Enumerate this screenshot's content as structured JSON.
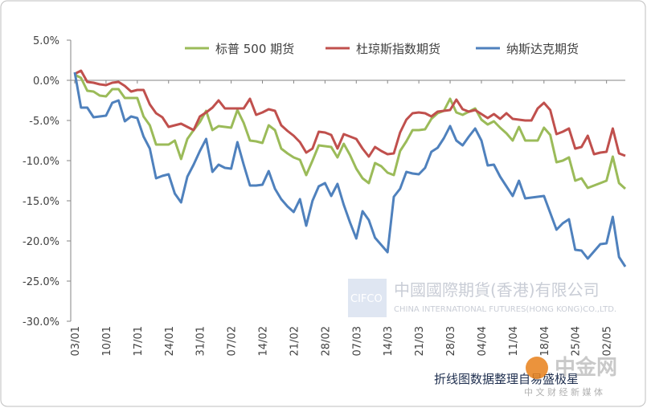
{
  "chart_data": {
    "type": "line",
    "categories": [
      "03/01",
      null,
      null,
      null,
      null,
      "10/01",
      null,
      null,
      null,
      null,
      "17/01",
      null,
      null,
      null,
      null,
      "24/01",
      null,
      null,
      null,
      null,
      "31/01",
      null,
      null,
      null,
      null,
      "07/02",
      null,
      null,
      null,
      null,
      "14/02",
      null,
      null,
      null,
      null,
      "21/02",
      null,
      null,
      null,
      null,
      "28/02",
      null,
      null,
      null,
      null,
      "07/03",
      null,
      null,
      null,
      null,
      "14/03",
      null,
      null,
      null,
      null,
      "21/03",
      null,
      null,
      null,
      null,
      "28/03",
      null,
      null,
      null,
      null,
      "04/04",
      null,
      null,
      null,
      null,
      "11/04",
      null,
      null,
      null,
      null,
      "18/04",
      null,
      null,
      null,
      null,
      "25/04",
      null,
      null,
      null,
      null,
      "02/05",
      null,
      null,
      null
    ],
    "series": [
      {
        "name": "标普 500 期货",
        "color": "#9bbb59",
        "values": [
          0.7,
          0.3,
          -1.3,
          -1.4,
          -1.9,
          -2,
          -1.1,
          -1.1,
          -2.2,
          -2.2,
          -2.2,
          -4.5,
          -5.6,
          -8,
          -8,
          -8,
          -7.5,
          -9.8,
          -7.3,
          -6.2,
          -5.2,
          -3.8,
          -6.2,
          -5.7,
          -5.8,
          -5.9,
          -3.7,
          -5.3,
          -7.5,
          -7.6,
          -7.8,
          -5.6,
          -6.2,
          -8.5,
          -9.1,
          -9.6,
          -9.9,
          -11.8,
          -10,
          -8.1,
          -8.2,
          -8.3,
          -9.6,
          -7.9,
          -9.3,
          -11,
          -12.2,
          -12.8,
          -10.3,
          -10.7,
          -11.5,
          -11.8,
          -8.8,
          -7.6,
          -6.2,
          -6.2,
          -6.1,
          -4.8,
          -4.1,
          -3.8,
          -2.3,
          -4,
          -4.3,
          -3.9,
          -3.5,
          -4.9,
          -5.5,
          -5.1,
          -5.9,
          -6.6,
          -7.5,
          -5.8,
          -7.5,
          -7.5,
          -7.5,
          -5.9,
          -6.8,
          -10.2,
          -10,
          -9.6,
          -12.5,
          -12.2,
          -13.4,
          -13.1,
          -12.8,
          -12.5,
          -9.5,
          -12.8,
          -13.5
        ]
      },
      {
        "name": "杜琼斯指数期货",
        "color": "#c0504d",
        "values": [
          0.8,
          1.2,
          -0.2,
          -0.3,
          -0.5,
          -0.6,
          -0.3,
          -0.2,
          -0.7,
          -1.4,
          -1.2,
          -1.2,
          -3,
          -4.1,
          -4.6,
          -5.8,
          -5.6,
          -5.4,
          -5.8,
          -6.2,
          -4.5,
          -4,
          -3.4,
          -2.5,
          -3.5,
          -3.5,
          -3.5,
          -3.5,
          -2.3,
          -4.3,
          -4,
          -3.6,
          -3.8,
          -5.6,
          -6.3,
          -6.9,
          -7.7,
          -9,
          -8.5,
          -6.4,
          -6.5,
          -6.8,
          -8.5,
          -6.7,
          -7,
          -7.3,
          -8.5,
          -9.5,
          -8.3,
          -8.8,
          -9.2,
          -9.1,
          -6.5,
          -4.9,
          -4.1,
          -4,
          -4.1,
          -4.5,
          -3.9,
          -3.8,
          -3.7,
          -2.4,
          -3.6,
          -3.9,
          -3.7,
          -4.2,
          -4.7,
          -4.2,
          -4.8,
          -4.1,
          -4.8,
          -4.9,
          -5,
          -5,
          -3.5,
          -2.8,
          -3.7,
          -6.7,
          -6.4,
          -6,
          -8.5,
          -8.3,
          -6.9,
          -9.2,
          -9,
          -8.9,
          -6,
          -9.1,
          -9.4
        ]
      },
      {
        "name": "纳斯达克期货",
        "color": "#4f81bd",
        "values": [
          1,
          -3.4,
          -3.4,
          -4.6,
          -4.5,
          -4.4,
          -2.8,
          -2.5,
          -5.1,
          -4.5,
          -4.7,
          -7,
          -8.5,
          -12.2,
          -11.9,
          -11.7,
          -14.1,
          -15.2,
          -12,
          -10.5,
          -8.8,
          -7.3,
          -11.4,
          -10.5,
          -10.9,
          -11,
          -7.7,
          -10.5,
          -13.1,
          -13.1,
          -13,
          -11.3,
          -13.5,
          -14.8,
          -15.7,
          -16.4,
          -14.8,
          -18.1,
          -15,
          -13.2,
          -12.8,
          -14.4,
          -12.9,
          -15.5,
          -17.7,
          -19.7,
          -16.3,
          -17.4,
          -19.6,
          -20.5,
          -21.4,
          -14.5,
          -13.5,
          -11.4,
          -11.6,
          -11.7,
          -10.9,
          -8.9,
          -8.4,
          -7.2,
          -5.7,
          -7.5,
          -8.1,
          -7,
          -6,
          -7.5,
          -10.6,
          -10.5,
          -12,
          -13.2,
          -14.4,
          -12.5,
          -14.7,
          -14.6,
          -14.5,
          -14.4,
          -16.5,
          -18.6,
          -17.8,
          -17.3,
          -21.1,
          -21.2,
          -22.2,
          -21.3,
          -20.4,
          -20.3,
          -17,
          -22,
          -23.2
        ]
      }
    ],
    "ylim": [
      -30,
      5
    ],
    "yticks": [
      {
        "value": 5,
        "label": "5.0%"
      },
      {
        "value": 0,
        "label": "0.0%"
      },
      {
        "value": -5,
        "label": "-5.0%"
      },
      {
        "value": -10,
        "label": "-10.0%"
      },
      {
        "value": -15,
        "label": "-15.0%"
      },
      {
        "value": -20,
        "label": "-20.0%"
      },
      {
        "value": -25,
        "label": "-25.0%"
      },
      {
        "value": -30,
        "label": "-30.0%"
      }
    ],
    "grid": false,
    "legend": "top",
    "annotations": [
      "CIFCO",
      "中國國際期貨(香港)有限公司",
      "CHINA INTERNATIONAL FUTURES(HONG KONG)CO.,LTD.",
      "折线图数据整理自易盛极星",
      "中金网",
      "中 文 财 经 新 媒 体"
    ]
  }
}
